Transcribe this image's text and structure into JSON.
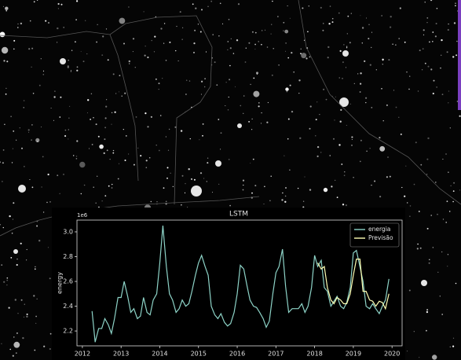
{
  "chart_data": {
    "type": "line",
    "title": "LSTM",
    "y_label": "energy",
    "y_offset_label": "1e6",
    "xlim": [
      2011.86,
      2020.26
    ],
    "xticks": [
      2012,
      2013,
      2014,
      2015,
      2016,
      2017,
      2018,
      2019,
      2020
    ],
    "ylim": [
      2.08,
      3.095
    ],
    "yticks": [
      {
        "value": 2.2,
        "label": "2.2"
      },
      {
        "value": 2.4,
        "label": "2.4"
      },
      {
        "value": 2.6,
        "label": "2.6"
      },
      {
        "value": 2.8,
        "label": "2.8"
      },
      {
        "value": 3.0,
        "label": "3.0"
      }
    ],
    "legend": "upper right",
    "series": [
      {
        "name": "energia",
        "color": "#8dd3c7",
        "x": [
          2012.25,
          2012.33,
          2012.42,
          2012.5,
          2012.58,
          2012.67,
          2012.75,
          2012.83,
          2012.92,
          2013.0,
          2013.08,
          2013.17,
          2013.25,
          2013.33,
          2013.42,
          2013.5,
          2013.58,
          2013.67,
          2013.75,
          2013.83,
          2013.92,
          2014.0,
          2014.08,
          2014.17,
          2014.25,
          2014.33,
          2014.42,
          2014.5,
          2014.58,
          2014.67,
          2014.75,
          2014.83,
          2014.92,
          2015.0,
          2015.08,
          2015.17,
          2015.25,
          2015.33,
          2015.42,
          2015.5,
          2015.58,
          2015.67,
          2015.75,
          2015.83,
          2015.92,
          2016.0,
          2016.08,
          2016.17,
          2016.25,
          2016.33,
          2016.42,
          2016.5,
          2016.58,
          2016.67,
          2016.75,
          2016.83,
          2016.92,
          2017.0,
          2017.08,
          2017.17,
          2017.25,
          2017.33,
          2017.42,
          2017.5,
          2017.58,
          2017.67,
          2017.75,
          2017.83,
          2017.92,
          2018.0,
          2018.08,
          2018.17,
          2018.25,
          2018.33,
          2018.42,
          2018.5,
          2018.58,
          2018.67,
          2018.75,
          2018.83,
          2018.92,
          2019.0,
          2019.08,
          2019.17,
          2019.25,
          2019.33,
          2019.42,
          2019.5,
          2019.58,
          2019.67,
          2019.75,
          2019.83,
          2019.92
        ],
        "values": [
          2.36,
          2.11,
          2.22,
          2.22,
          2.3,
          2.25,
          2.18,
          2.3,
          2.47,
          2.47,
          2.6,
          2.48,
          2.35,
          2.38,
          2.3,
          2.32,
          2.47,
          2.35,
          2.33,
          2.45,
          2.5,
          2.75,
          3.05,
          2.72,
          2.5,
          2.45,
          2.35,
          2.38,
          2.45,
          2.4,
          2.42,
          2.52,
          2.65,
          2.75,
          2.81,
          2.72,
          2.65,
          2.4,
          2.33,
          2.3,
          2.34,
          2.27,
          2.24,
          2.26,
          2.35,
          2.5,
          2.73,
          2.7,
          2.57,
          2.45,
          2.4,
          2.39,
          2.35,
          2.3,
          2.23,
          2.28,
          2.5,
          2.67,
          2.72,
          2.86,
          2.56,
          2.35,
          2.38,
          2.38,
          2.38,
          2.42,
          2.35,
          2.4,
          2.55,
          2.81,
          2.72,
          2.77,
          2.55,
          2.52,
          2.4,
          2.44,
          2.48,
          2.4,
          2.38,
          2.43,
          2.55,
          2.83,
          2.85,
          2.72,
          2.6,
          2.4,
          2.38,
          2.42,
          2.38,
          2.34,
          2.4,
          2.45,
          2.62
        ]
      },
      {
        "name": "Previsão",
        "color": "#ffffb3",
        "x": [
          2018.08,
          2018.17,
          2018.25,
          2018.33,
          2018.42,
          2018.5,
          2018.58,
          2018.67,
          2018.75,
          2018.83,
          2018.92,
          2019.0,
          2019.08,
          2019.17,
          2019.25,
          2019.33,
          2019.42,
          2019.5,
          2019.58,
          2019.67,
          2019.75,
          2019.83,
          2019.92
        ],
        "values": [
          2.75,
          2.7,
          2.72,
          2.55,
          2.45,
          2.42,
          2.47,
          2.45,
          2.42,
          2.42,
          2.5,
          2.65,
          2.78,
          2.78,
          2.52,
          2.52,
          2.45,
          2.44,
          2.4,
          2.44,
          2.43,
          2.38,
          2.5
        ]
      }
    ]
  }
}
